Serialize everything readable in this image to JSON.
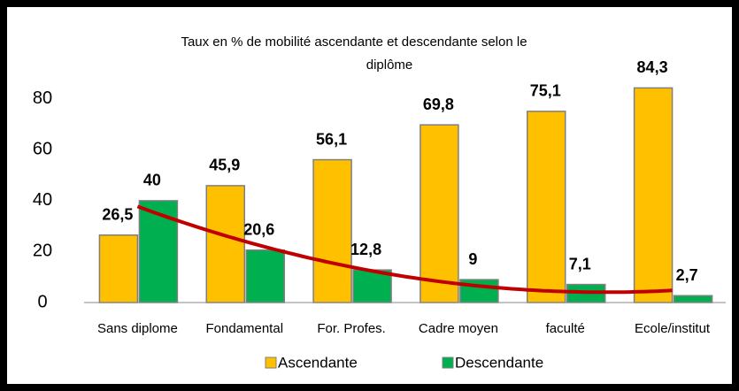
{
  "chart_data": {
    "type": "bar",
    "title": "Taux  en % de mobilité ascendante et descendante selon le",
    "subtitle": "diplôme",
    "categories": [
      "Sans diplome",
      "Fondamental",
      "For. Profes.",
      "Cadre moyen",
      "faculté",
      "Ecole/institut"
    ],
    "series": [
      {
        "name": "Ascendante",
        "color": "#FFC000",
        "values": [
          26.5,
          45.9,
          56.1,
          69.8,
          75.1,
          84.3
        ],
        "value_labels": [
          "26,5",
          "45,9",
          "56,1",
          "69,8",
          "75,1",
          "84,3"
        ]
      },
      {
        "name": "Descendante",
        "color": "#00B050",
        "values": [
          40,
          20.6,
          12.8,
          9,
          7.1,
          2.7
        ],
        "value_labels": [
          "40",
          "20,6",
          "12,8",
          "9",
          "7,1",
          "2,7"
        ]
      }
    ],
    "ylim": [
      0,
      90
    ],
    "yticks": [
      0,
      20,
      40,
      60,
      80
    ],
    "grid": false,
    "legend": "bottom"
  }
}
